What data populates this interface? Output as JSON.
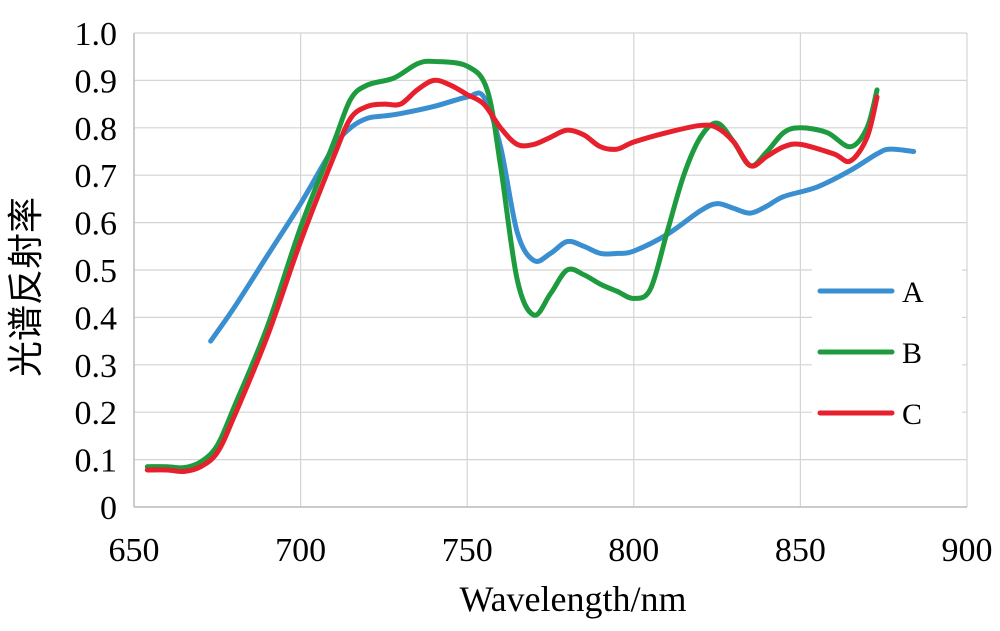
{
  "chart_data": {
    "type": "line",
    "xlabel": "Wavelength/nm",
    "ylabel": "光谱反射率",
    "xlim": [
      650,
      900
    ],
    "ylim": [
      0,
      1.0
    ],
    "x_ticks": [
      650,
      700,
      750,
      800,
      850,
      900
    ],
    "x_tick_labels": [
      "650",
      "700",
      "750",
      "800",
      "850",
      "900"
    ],
    "y_ticks": [
      0,
      0.1,
      0.2,
      0.3,
      0.4,
      0.5,
      0.6,
      0.7,
      0.8,
      0.9,
      1.0
    ],
    "y_tick_labels": [
      "0",
      "0.1",
      "0.2",
      "0.3",
      "0.4",
      "0.5",
      "0.6",
      "0.7",
      "0.8",
      "0.9",
      "1.0"
    ],
    "grid": true,
    "legend_position": "right-middle",
    "series": [
      {
        "name": "A",
        "color": "#3a8fd0",
        "points": [
          [
            673,
            0.35
          ],
          [
            680,
            0.42
          ],
          [
            690,
            0.53
          ],
          [
            700,
            0.64
          ],
          [
            710,
            0.76
          ],
          [
            715,
            0.8
          ],
          [
            720,
            0.82
          ],
          [
            725,
            0.825
          ],
          [
            730,
            0.83
          ],
          [
            740,
            0.845
          ],
          [
            750,
            0.865
          ],
          [
            755,
            0.865
          ],
          [
            760,
            0.76
          ],
          [
            765,
            0.58
          ],
          [
            770,
            0.52
          ],
          [
            775,
            0.535
          ],
          [
            780,
            0.56
          ],
          [
            785,
            0.55
          ],
          [
            790,
            0.535
          ],
          [
            795,
            0.535
          ],
          [
            800,
            0.54
          ],
          [
            810,
            0.575
          ],
          [
            820,
            0.625
          ],
          [
            825,
            0.64
          ],
          [
            830,
            0.63
          ],
          [
            835,
            0.62
          ],
          [
            840,
            0.635
          ],
          [
            845,
            0.655
          ],
          [
            855,
            0.675
          ],
          [
            865,
            0.71
          ],
          [
            873,
            0.745
          ],
          [
            877,
            0.755
          ],
          [
            884,
            0.75
          ]
        ]
      },
      {
        "name": "B",
        "color": "#1e9b3e",
        "points": [
          [
            654,
            0.085
          ],
          [
            660,
            0.085
          ],
          [
            665,
            0.083
          ],
          [
            670,
            0.095
          ],
          [
            675,
            0.13
          ],
          [
            680,
            0.21
          ],
          [
            690,
            0.38
          ],
          [
            700,
            0.59
          ],
          [
            710,
            0.77
          ],
          [
            715,
            0.86
          ],
          [
            720,
            0.89
          ],
          [
            728,
            0.905
          ],
          [
            735,
            0.935
          ],
          [
            740,
            0.94
          ],
          [
            750,
            0.93
          ],
          [
            756,
            0.88
          ],
          [
            760,
            0.72
          ],
          [
            765,
            0.48
          ],
          [
            770,
            0.405
          ],
          [
            775,
            0.45
          ],
          [
            780,
            0.5
          ],
          [
            785,
            0.49
          ],
          [
            790,
            0.47
          ],
          [
            795,
            0.455
          ],
          [
            800,
            0.44
          ],
          [
            805,
            0.46
          ],
          [
            810,
            0.58
          ],
          [
            815,
            0.7
          ],
          [
            820,
            0.78
          ],
          [
            825,
            0.81
          ],
          [
            830,
            0.77
          ],
          [
            835,
            0.72
          ],
          [
            840,
            0.75
          ],
          [
            845,
            0.79
          ],
          [
            850,
            0.8
          ],
          [
            858,
            0.79
          ],
          [
            865,
            0.76
          ],
          [
            870,
            0.8
          ],
          [
            873,
            0.88
          ]
        ]
      },
      {
        "name": "C",
        "color": "#e6202c",
        "points": [
          [
            654,
            0.078
          ],
          [
            660,
            0.078
          ],
          [
            665,
            0.075
          ],
          [
            670,
            0.085
          ],
          [
            675,
            0.115
          ],
          [
            680,
            0.19
          ],
          [
            690,
            0.36
          ],
          [
            700,
            0.56
          ],
          [
            710,
            0.74
          ],
          [
            715,
            0.82
          ],
          [
            720,
            0.845
          ],
          [
            725,
            0.85
          ],
          [
            730,
            0.85
          ],
          [
            735,
            0.88
          ],
          [
            740,
            0.9
          ],
          [
            745,
            0.89
          ],
          [
            750,
            0.87
          ],
          [
            755,
            0.85
          ],
          [
            760,
            0.8
          ],
          [
            765,
            0.765
          ],
          [
            770,
            0.765
          ],
          [
            775,
            0.78
          ],
          [
            780,
            0.795
          ],
          [
            785,
            0.785
          ],
          [
            790,
            0.76
          ],
          [
            795,
            0.755
          ],
          [
            800,
            0.77
          ],
          [
            810,
            0.79
          ],
          [
            820,
            0.805
          ],
          [
            825,
            0.8
          ],
          [
            830,
            0.77
          ],
          [
            835,
            0.72
          ],
          [
            840,
            0.74
          ],
          [
            845,
            0.76
          ],
          [
            850,
            0.765
          ],
          [
            860,
            0.745
          ],
          [
            865,
            0.73
          ],
          [
            870,
            0.78
          ],
          [
            873,
            0.865
          ]
        ]
      }
    ]
  }
}
